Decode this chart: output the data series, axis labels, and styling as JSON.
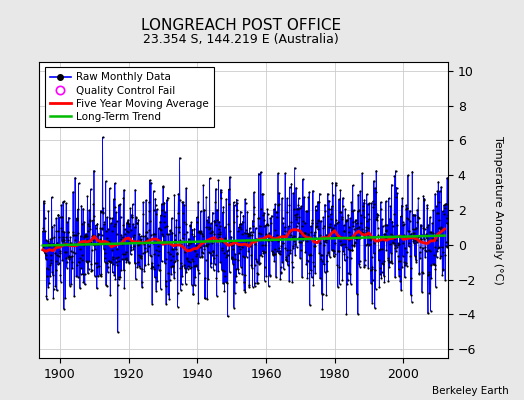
{
  "title": "LONGREACH POST OFFICE",
  "subtitle": "23.354 S, 144.219 E (Australia)",
  "ylabel": "Temperature Anomaly (°C)",
  "xlabel_note": "Berkeley Earth",
  "ylim": [
    -6.5,
    10.5
  ],
  "xlim": [
    1894,
    2013
  ],
  "xticks": [
    1900,
    1920,
    1940,
    1960,
    1980,
    2000
  ],
  "yticks": [
    -6,
    -4,
    -2,
    0,
    2,
    4,
    6,
    8,
    10
  ],
  "start_year": 1895,
  "end_year": 2012,
  "seed": 42,
  "bg_color": "#e8e8e8",
  "plot_bg_color": "#ffffff",
  "line_color": "#0000ff",
  "ma_color": "#ff0000",
  "trend_color": "#00bb00",
  "dot_color": "#000000",
  "qc_color": "#ff00ff",
  "title_fontsize": 11,
  "subtitle_fontsize": 9,
  "ylabel_fontsize": 8,
  "tick_fontsize": 9
}
